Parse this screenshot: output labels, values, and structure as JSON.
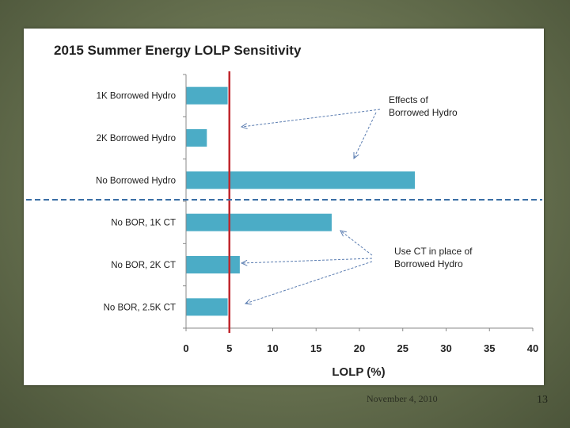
{
  "slide": {
    "footer_date": "November 4, 2010",
    "slide_number": "13"
  },
  "colors": {
    "bar": "#4bacc6",
    "reference_line": "#c0272d",
    "divider": "#3a6ea5",
    "arrow": "#5b7db1"
  },
  "chart_data": {
    "type": "bar",
    "orientation": "horizontal",
    "title": "2015 Summer Energy LOLP Sensitivity",
    "xlabel": "LOLP (%)",
    "ylabel": "",
    "xlim": [
      0,
      40
    ],
    "xticks": [
      0,
      5,
      10,
      15,
      20,
      25,
      30,
      35,
      40
    ],
    "categories": [
      "1K Borrowed Hydro",
      "2K Borrowed Hydro",
      "No Borrowed Hydro",
      "No BOR, 1K CT",
      "No BOR, 2K CT",
      "No BOR, 2.5K CT"
    ],
    "values": [
      4.8,
      2.4,
      26.4,
      16.8,
      6.2,
      4.8
    ],
    "reference_line": 5,
    "grid": false,
    "annotations": [
      {
        "lines": [
          "Effects of",
          "Borrowed Hydro"
        ]
      },
      {
        "lines": [
          "Use CT in place of",
          "Borrowed Hydro"
        ]
      }
    ]
  }
}
